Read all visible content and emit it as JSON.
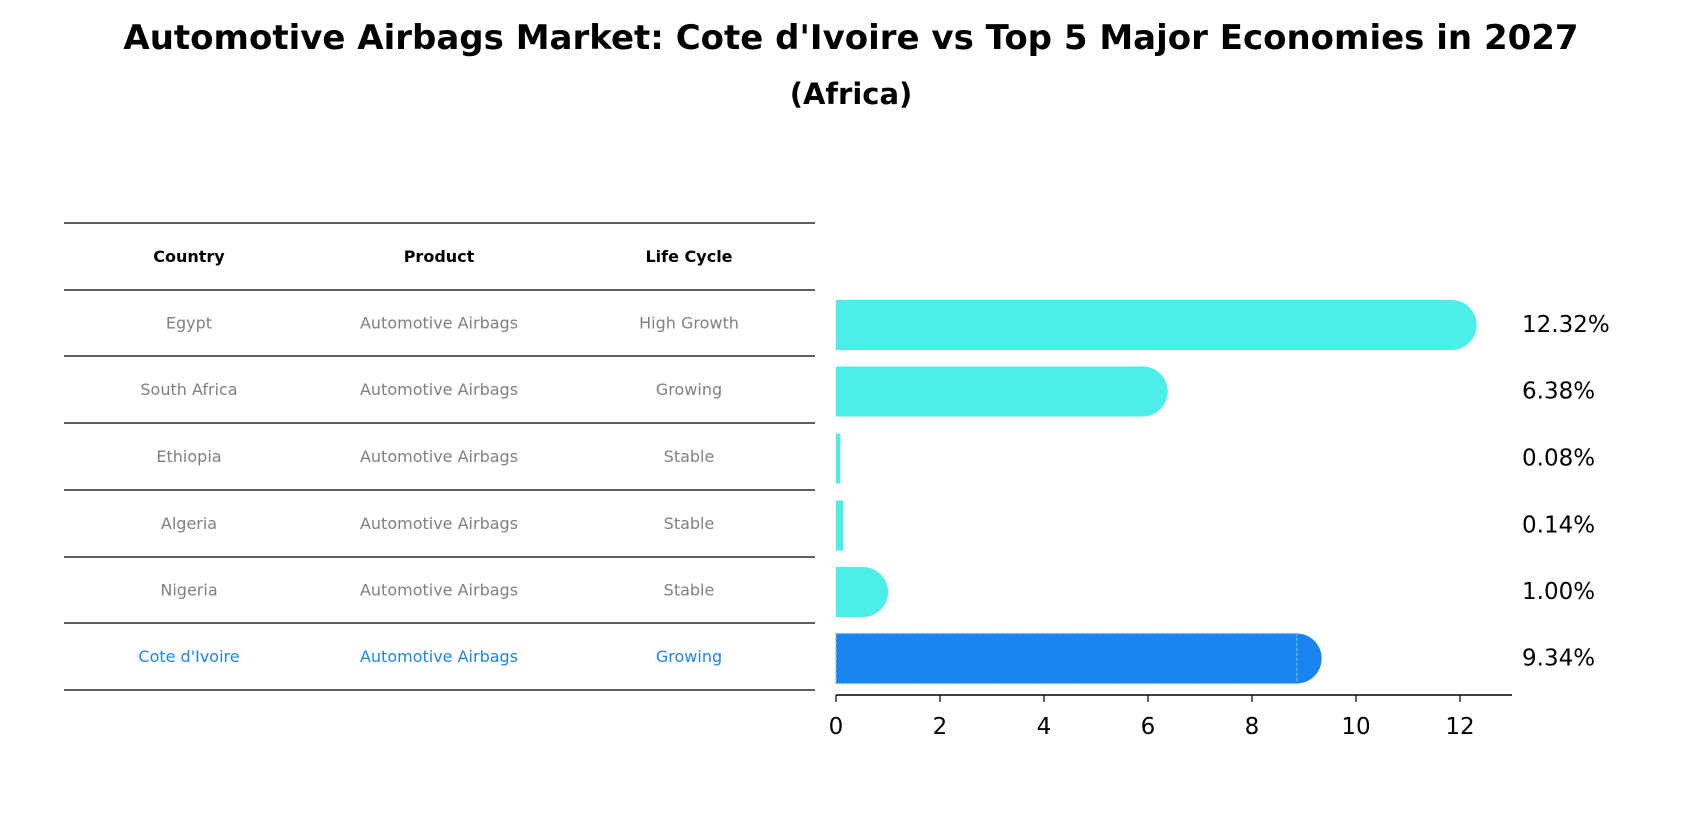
{
  "chart_data": {
    "type": "bar",
    "title": "Automotive Airbags Market: Cote d'Ivoire vs Top 5 Major Economies in 2027",
    "subtitle": "(Africa)",
    "orientation": "horizontal",
    "table": {
      "columns": [
        "Country",
        "Product",
        "Life Cycle"
      ],
      "rows": [
        {
          "country": "Egypt",
          "product": "Automotive Airbags",
          "life_cycle": "High Growth"
        },
        {
          "country": "South Africa",
          "product": "Automotive Airbags",
          "life_cycle": "Growing"
        },
        {
          "country": "Ethiopia",
          "product": "Automotive Airbags",
          "life_cycle": "Stable"
        },
        {
          "country": "Algeria",
          "product": "Automotive Airbags",
          "life_cycle": "Stable"
        },
        {
          "country": "Nigeria",
          "product": "Automotive Airbags",
          "life_cycle": "Stable"
        },
        {
          "country": "Cote d'Ivoire",
          "product": "Automotive Airbags",
          "life_cycle": "Growing"
        }
      ]
    },
    "categories": [
      "Egypt",
      "South Africa",
      "Ethiopia",
      "Algeria",
      "Nigeria",
      "Cote d'Ivoire"
    ],
    "values": [
      12.32,
      6.38,
      0.08,
      0.14,
      1.0,
      9.34
    ],
    "value_labels": [
      "12.32%",
      "6.38%",
      "0.08%",
      "0.14%",
      "1.00%",
      "9.34%"
    ],
    "highlight": "Cote d'Ivoire",
    "xlim": [
      0,
      13
    ],
    "xticks": [
      0,
      2,
      4,
      6,
      8,
      10,
      12
    ],
    "grid": false,
    "colors": {
      "bar": "#4DEEEA",
      "highlight": "#1A85F0",
      "text_muted": "#808080",
      "text_highlight": "#1A85F0"
    }
  }
}
